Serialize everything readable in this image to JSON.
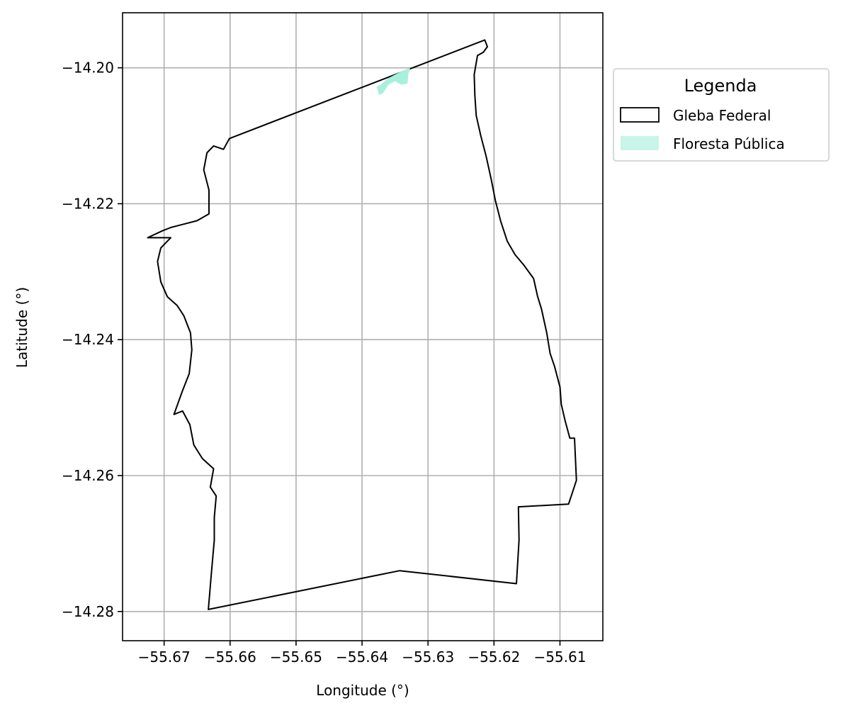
{
  "chart_data": {
    "type": "map",
    "xlabel": "Longitude (°)",
    "ylabel": "Latitude (°)",
    "xlim": [
      -55.6763,
      -55.6035
    ],
    "ylim": [
      -14.2843,
      -14.1919
    ],
    "grid": true,
    "x_ticks": [
      -55.67,
      -55.66,
      -55.65,
      -55.64,
      -55.63,
      -55.62,
      -55.61
    ],
    "x_tick_labels": [
      "−55.67",
      "−55.66",
      "−55.65",
      "−55.64",
      "−55.63",
      "−55.62",
      "−55.61"
    ],
    "y_ticks": [
      -14.2,
      -14.22,
      -14.24,
      -14.26,
      -14.28
    ],
    "y_tick_labels": [
      "−14.20",
      "−14.22",
      "−14.24",
      "−14.26",
      "−14.28"
    ],
    "legend": {
      "title": "Legenda",
      "placement": "outside-right-top",
      "entries": [
        {
          "label": "Gleba Federal",
          "style": "outline",
          "edge_color": "#000000",
          "fill_color": "none"
        },
        {
          "label": "Floresta Pública",
          "style": "fill",
          "edge_color": "none",
          "fill_color": "#c8f5e8"
        }
      ]
    },
    "layers": [
      {
        "name": "Gleba Federal",
        "style": "outline",
        "stroke_color": "#000000",
        "coordinates": [
          [
            -55.6601,
            -14.2104
          ],
          [
            -55.6214,
            -14.1959
          ],
          [
            -55.621,
            -14.1969
          ],
          [
            -55.6216,
            -14.1977
          ],
          [
            -55.6225,
            -14.1982
          ],
          [
            -55.623,
            -14.201
          ],
          [
            -55.6229,
            -14.204
          ],
          [
            -55.6227,
            -14.207
          ],
          [
            -55.622,
            -14.21
          ],
          [
            -55.6212,
            -14.213
          ],
          [
            -55.6204,
            -14.2165
          ],
          [
            -55.6198,
            -14.2195
          ],
          [
            -55.619,
            -14.2225
          ],
          [
            -55.618,
            -14.2255
          ],
          [
            -55.6168,
            -14.2275
          ],
          [
            -55.6155,
            -14.229
          ],
          [
            -55.614,
            -14.231
          ],
          [
            -55.6134,
            -14.2336
          ],
          [
            -55.6128,
            -14.2355
          ],
          [
            -55.612,
            -14.239
          ],
          [
            -55.6115,
            -14.242
          ],
          [
            -55.6108,
            -14.244
          ],
          [
            -55.61,
            -14.247
          ],
          [
            -55.6098,
            -14.2495
          ],
          [
            -55.6092,
            -14.252
          ],
          [
            -55.6085,
            -14.2545
          ],
          [
            -55.6078,
            -14.2545
          ],
          [
            -55.6075,
            -14.2607
          ],
          [
            -55.6087,
            -14.2642
          ],
          [
            -55.6163,
            -14.2646
          ],
          [
            -55.6162,
            -14.2695
          ],
          [
            -55.6166,
            -14.2759
          ],
          [
            -55.6343,
            -14.274
          ],
          [
            -55.6633,
            -14.2797
          ],
          [
            -55.6628,
            -14.274
          ],
          [
            -55.6624,
            -14.2695
          ],
          [
            -55.6624,
            -14.2662
          ],
          [
            -55.6621,
            -14.263
          ],
          [
            -55.663,
            -14.2617
          ],
          [
            -55.6625,
            -14.259
          ],
          [
            -55.6642,
            -14.2575
          ],
          [
            -55.6655,
            -14.2555
          ],
          [
            -55.6661,
            -14.2525
          ],
          [
            -55.6672,
            -14.2505
          ],
          [
            -55.6685,
            -14.251
          ],
          [
            -55.6672,
            -14.2475
          ],
          [
            -55.6662,
            -14.245
          ],
          [
            -55.6658,
            -14.2415
          ],
          [
            -55.666,
            -14.239
          ],
          [
            -55.667,
            -14.2365
          ],
          [
            -55.668,
            -14.235
          ],
          [
            -55.6695,
            -14.2337
          ],
          [
            -55.6705,
            -14.2315
          ],
          [
            -55.671,
            -14.2285
          ],
          [
            -55.6705,
            -14.2265
          ],
          [
            -55.669,
            -14.225
          ],
          [
            -55.6725,
            -14.225
          ],
          [
            -55.6703,
            -14.224
          ],
          [
            -55.669,
            -14.2235
          ],
          [
            -55.667,
            -14.223
          ],
          [
            -55.665,
            -14.2225
          ],
          [
            -55.6632,
            -14.2215
          ],
          [
            -55.6632,
            -14.218
          ],
          [
            -55.664,
            -14.215
          ],
          [
            -55.6635,
            -14.2125
          ],
          [
            -55.6625,
            -14.2115
          ],
          [
            -55.661,
            -14.212
          ],
          [
            -55.6601,
            -14.2104
          ]
        ]
      },
      {
        "name": "Floresta Pública",
        "style": "fill",
        "fill_color": "#a8f0dc",
        "coordinates": [
          [
            -55.6378,
            -14.2028
          ],
          [
            -55.6372,
            -14.2025
          ],
          [
            -55.636,
            -14.2015
          ],
          [
            -55.635,
            -14.201
          ],
          [
            -55.634,
            -14.2005
          ],
          [
            -55.6327,
            -14.2
          ],
          [
            -55.633,
            -14.201
          ],
          [
            -55.6331,
            -14.2023
          ],
          [
            -55.634,
            -14.2025
          ],
          [
            -55.635,
            -14.202
          ],
          [
            -55.636,
            -14.2025
          ],
          [
            -55.6368,
            -14.2037
          ],
          [
            -55.6374,
            -14.204
          ],
          [
            -55.6378,
            -14.2028
          ]
        ]
      }
    ]
  }
}
